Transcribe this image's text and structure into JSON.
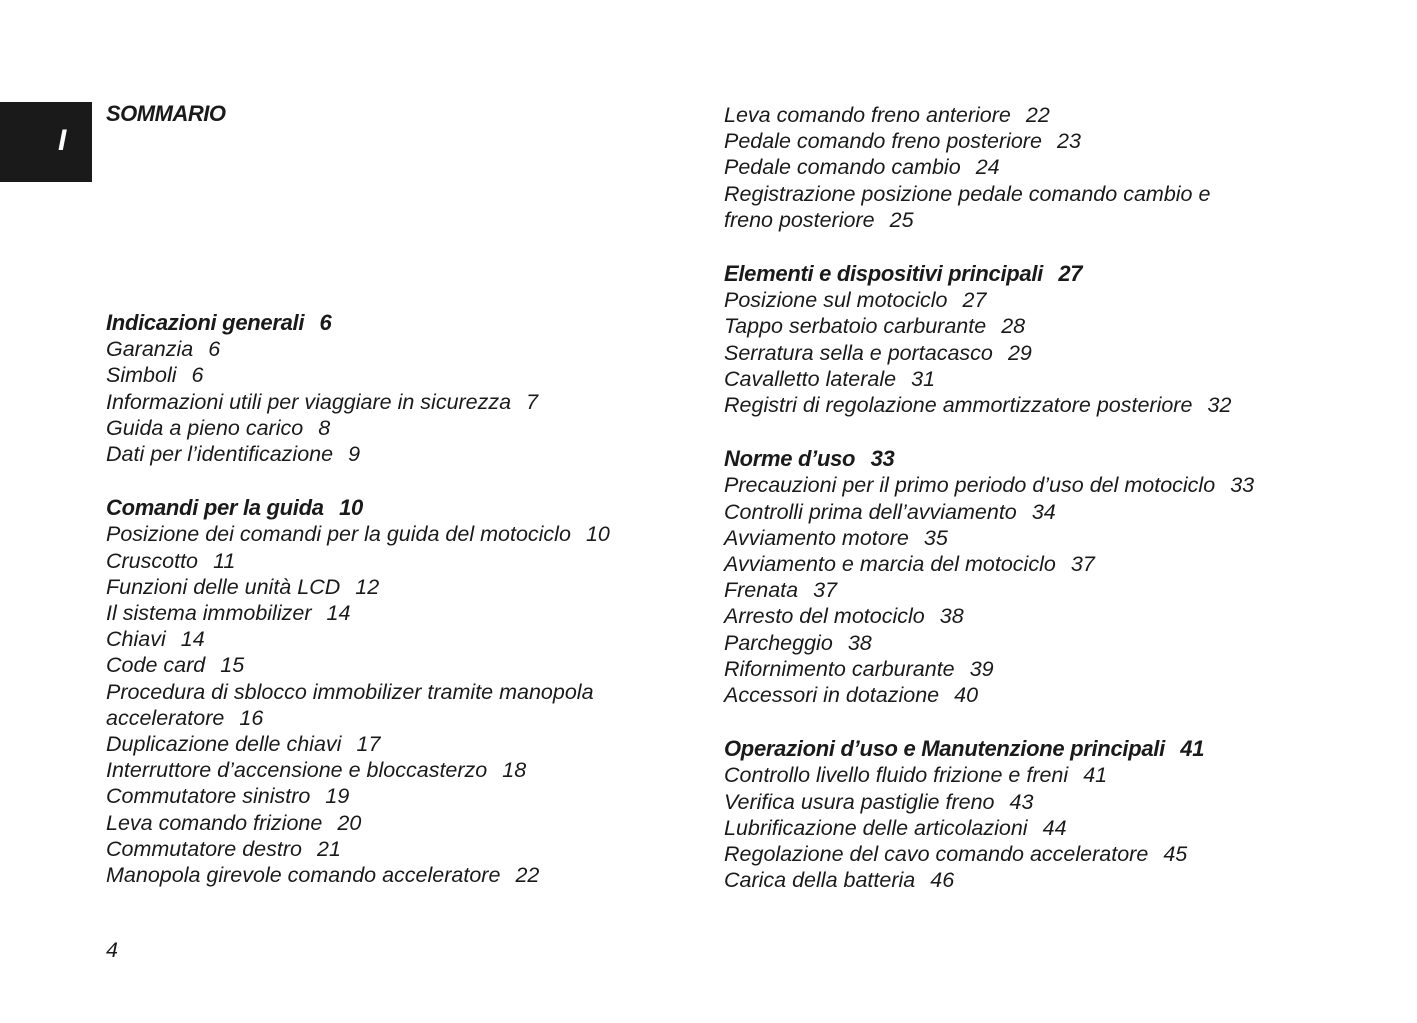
{
  "tab_letter": "I",
  "title": "SOMMARIO",
  "page_number": "4",
  "left_sections": [
    {
      "title": "Indicazioni generali",
      "page": "6",
      "entries": [
        {
          "title": "Garanzia",
          "page": "6"
        },
        {
          "title": "Simboli",
          "page": "6"
        },
        {
          "title": "Informazioni utili per viaggiare in sicurezza",
          "page": "7"
        },
        {
          "title": "Guida a pieno carico",
          "page": "8"
        },
        {
          "title": "Dati per l’identificazione",
          "page": "9"
        }
      ]
    },
    {
      "title": "Comandi per la guida",
      "page": "10",
      "entries": [
        {
          "title": "Posizione dei comandi per la guida del motociclo",
          "page": "10"
        },
        {
          "title": "Cruscotto",
          "page": "11"
        },
        {
          "title": "Funzioni delle unità LCD",
          "page": "12"
        },
        {
          "title": "Il sistema immobilizer",
          "page": "14"
        },
        {
          "title": "Chiavi",
          "page": "14"
        },
        {
          "title": "Code card",
          "page": "15"
        },
        {
          "title": "Procedura di sblocco immobilizer tramite manopola\nacceleratore",
          "page": "16"
        },
        {
          "title": "Duplicazione delle chiavi",
          "page": "17"
        },
        {
          "title": "Interruttore d’accensione e bloccasterzo",
          "page": "18"
        },
        {
          "title": "Commutatore sinistro",
          "page": "19"
        },
        {
          "title": "Leva comando frizione",
          "page": "20"
        },
        {
          "title": "Commutatore destro",
          "page": "21"
        },
        {
          "title": "Manopola girevole comando acceleratore",
          "page": "22"
        }
      ]
    }
  ],
  "right_sections": [
    {
      "title": "",
      "page": "",
      "entries": [
        {
          "title": "Leva comando freno anteriore",
          "page": "22"
        },
        {
          "title": "Pedale comando freno posteriore",
          "page": "23"
        },
        {
          "title": "Pedale comando cambio",
          "page": "24"
        },
        {
          "title": "Registrazione posizione pedale comando cambio e\nfreno posteriore",
          "page": "25"
        }
      ]
    },
    {
      "title": "Elementi e dispositivi principali",
      "page": "27",
      "entries": [
        {
          "title": "Posizione sul motociclo",
          "page": "27"
        },
        {
          "title": "Tappo serbatoio carburante",
          "page": "28"
        },
        {
          "title": "Serratura sella e portacasco",
          "page": "29"
        },
        {
          "title": "Cavalletto laterale",
          "page": "31"
        },
        {
          "title": "Registri di regolazione ammortizzatore posteriore",
          "page": "32"
        }
      ]
    },
    {
      "title": "Norme d’uso",
      "page": "33",
      "entries": [
        {
          "title": "Precauzioni per il primo periodo d’uso del motociclo",
          "page": "33"
        },
        {
          "title": "Controlli prima dell’avviamento",
          "page": "34"
        },
        {
          "title": "Avviamento motore",
          "page": "35"
        },
        {
          "title": "Avviamento e marcia del motociclo",
          "page": "37"
        },
        {
          "title": "Frenata",
          "page": "37"
        },
        {
          "title": "Arresto del motociclo",
          "page": "38"
        },
        {
          "title": "Parcheggio",
          "page": "38"
        },
        {
          "title": "Rifornimento carburante",
          "page": "39"
        },
        {
          "title": "Accessori in dotazione",
          "page": "40"
        }
      ]
    },
    {
      "title": "Operazioni d’uso e Manutenzione principali",
      "page": "41",
      "entries": [
        {
          "title": "Controllo livello fluido frizione e freni",
          "page": "41"
        },
        {
          "title": "Verifica usura pastiglie freno",
          "page": "43"
        },
        {
          "title": "Lubrificazione delle articolazioni",
          "page": "44"
        },
        {
          "title": "Regolazione del cavo comando acceleratore",
          "page": "45"
        },
        {
          "title": "Carica della batteria",
          "page": "46"
        }
      ]
    }
  ]
}
